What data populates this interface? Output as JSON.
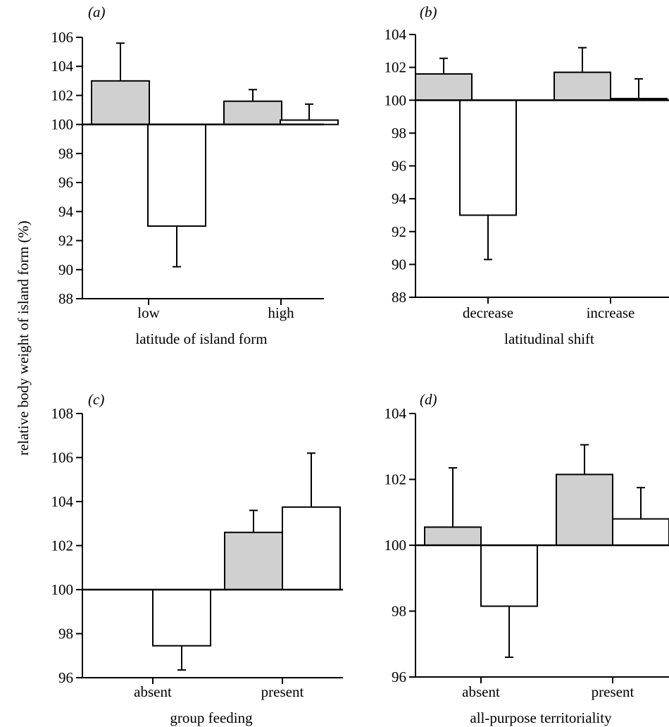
{
  "shared_ylabel": "relative body weight of island form (%)",
  "colors": {
    "gray_bar": "#d0d0d0",
    "white_bar": "#ffffff",
    "stroke": "#000000"
  },
  "chart_data": [
    {
      "panel": "(a)",
      "type": "bar",
      "xlabel": "latitude of island form",
      "categories": [
        "low",
        "high"
      ],
      "baseline": 100,
      "ylim": [
        88,
        106
      ],
      "yticks": [
        88,
        90,
        92,
        94,
        96,
        98,
        100,
        102,
        104,
        106
      ],
      "series": [
        {
          "fill": "gray",
          "values": [
            103.0,
            101.6
          ],
          "errors": [
            2.6,
            0.8
          ]
        },
        {
          "fill": "white",
          "values": [
            93.0,
            100.3
          ],
          "errors": [
            2.8,
            1.1
          ]
        }
      ]
    },
    {
      "panel": "(b)",
      "type": "bar",
      "xlabel": "latitudinal shift",
      "categories": [
        "decrease",
        "increase"
      ],
      "baseline": 100,
      "ylim": [
        88,
        104
      ],
      "yticks": [
        88,
        90,
        92,
        94,
        96,
        98,
        100,
        102,
        104
      ],
      "series": [
        {
          "fill": "gray",
          "values": [
            101.6,
            101.7
          ],
          "errors": [
            0.95,
            1.5
          ]
        },
        {
          "fill": "white",
          "values": [
            93.0,
            100.1
          ],
          "errors": [
            2.7,
            1.2
          ]
        }
      ]
    },
    {
      "panel": "(c)",
      "type": "bar",
      "xlabel": "group feeding",
      "categories": [
        "absent",
        "present"
      ],
      "baseline": 100,
      "ylim": [
        96,
        108
      ],
      "yticks": [
        96,
        98,
        100,
        102,
        104,
        106,
        108
      ],
      "series": [
        {
          "fill": "gray",
          "values": [
            100.0,
            102.6
          ],
          "errors": [
            0,
            1.0
          ]
        },
        {
          "fill": "white",
          "values": [
            97.45,
            103.75
          ],
          "errors": [
            1.1,
            2.45
          ]
        }
      ]
    },
    {
      "panel": "(d)",
      "type": "bar",
      "xlabel": "all-purpose territoriality",
      "categories": [
        "absent",
        "present"
      ],
      "baseline": 100,
      "ylim": [
        96,
        104
      ],
      "yticks": [
        96,
        98,
        100,
        102,
        104
      ],
      "series": [
        {
          "fill": "gray",
          "values": [
            100.55,
            102.15
          ],
          "errors": [
            1.8,
            0.9
          ]
        },
        {
          "fill": "white",
          "values": [
            98.15,
            100.8
          ],
          "errors": [
            1.55,
            0.95
          ]
        }
      ]
    }
  ]
}
